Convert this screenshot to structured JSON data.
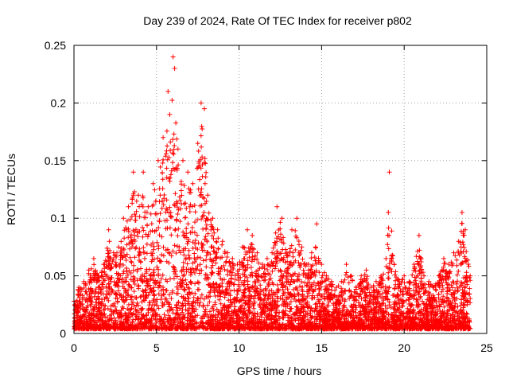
{
  "chart_data": {
    "type": "scatter",
    "title": "Day 239 of 2024, Rate Of TEC Index for receiver p802",
    "xlabel": "GPS time / hours",
    "ylabel": "ROTI / TECUs",
    "xlim": [
      0,
      25
    ],
    "ylim": [
      0,
      0.25
    ],
    "xticks": [
      0,
      5,
      10,
      15,
      20,
      25
    ],
    "yticks": [
      0,
      0.05,
      0.1,
      0.15,
      0.2,
      0.25
    ],
    "xtick_labels": [
      "0",
      "5",
      "10",
      "15",
      "20",
      "25"
    ],
    "ytick_labels": [
      "0",
      "0.05",
      "0.1",
      "0.15",
      "0.2",
      "0.25"
    ],
    "grid": true,
    "marker": "+",
    "color": "#ff0000",
    "series": [
      {
        "name": "ROTI",
        "x": [
          0.0,
          0.3,
          0.6,
          0.9,
          1.2,
          1.5,
          1.8,
          2.1,
          2.4,
          2.7,
          3.0,
          3.3,
          3.6,
          3.9,
          4.2,
          4.5,
          4.8,
          5.1,
          5.4,
          5.7,
          5.8,
          6.0,
          6.1,
          6.3,
          6.6,
          6.9,
          7.2,
          7.5,
          7.7,
          7.9,
          8.1,
          8.4,
          8.7,
          9.0,
          9.3,
          9.6,
          9.9,
          10.2,
          10.5,
          10.8,
          11.1,
          11.4,
          11.7,
          12.0,
          12.3,
          12.6,
          12.9,
          13.2,
          13.5,
          13.8,
          14.1,
          14.4,
          14.7,
          15.0,
          15.3,
          15.6,
          15.9,
          16.2,
          16.5,
          16.8,
          17.1,
          17.4,
          17.7,
          18.0,
          18.3,
          18.6,
          18.9,
          19.1,
          19.4,
          19.7,
          20.0,
          20.3,
          20.6,
          20.9,
          21.2,
          21.5,
          21.8,
          22.1,
          22.4,
          22.7,
          23.0,
          23.3,
          23.5,
          23.7,
          24.0
        ],
        "y": [
          0.028,
          0.04,
          0.045,
          0.055,
          0.065,
          0.05,
          0.06,
          0.09,
          0.07,
          0.075,
          0.1,
          0.11,
          0.14,
          0.12,
          0.14,
          0.11,
          0.13,
          0.15,
          0.17,
          0.21,
          0.19,
          0.24,
          0.23,
          0.16,
          0.15,
          0.14,
          0.13,
          0.165,
          0.2,
          0.195,
          0.12,
          0.1,
          0.09,
          0.08,
          0.07,
          0.065,
          0.06,
          0.075,
          0.09,
          0.085,
          0.07,
          0.06,
          0.065,
          0.07,
          0.11,
          0.1,
          0.07,
          0.09,
          0.1,
          0.075,
          0.06,
          0.07,
          0.095,
          0.06,
          0.05,
          0.045,
          0.04,
          0.045,
          0.06,
          0.05,
          0.04,
          0.05,
          0.055,
          0.04,
          0.045,
          0.05,
          0.065,
          0.14,
          0.06,
          0.045,
          0.05,
          0.045,
          0.06,
          0.085,
          0.05,
          0.045,
          0.04,
          0.05,
          0.065,
          0.06,
          0.07,
          0.08,
          0.105,
          0.09,
          0.05
        ]
      }
    ]
  }
}
